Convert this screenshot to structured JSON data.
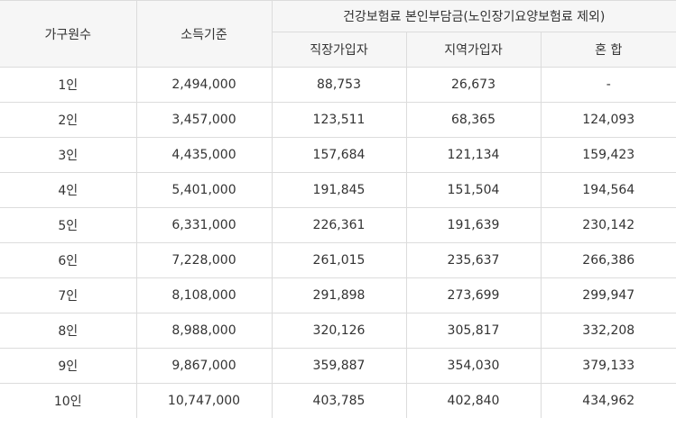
{
  "header": {
    "household": "가구원수",
    "income": "소득기준",
    "premium_group": "건강보험료 본인부담금(노인장기요양보험료 제외)",
    "employee": "직장가입자",
    "regional": "지역가입자",
    "mixed": "혼 합"
  },
  "rows": [
    [
      "1인",
      "2,494,000",
      "88,753",
      "26,673",
      "-"
    ],
    [
      "2인",
      "3,457,000",
      "123,511",
      "68,365",
      "124,093"
    ],
    [
      "3인",
      "4,435,000",
      "157,684",
      "121,134",
      "159,423"
    ],
    [
      "4인",
      "5,401,000",
      "191,845",
      "151,504",
      "194,564"
    ],
    [
      "5인",
      "6,331,000",
      "226,361",
      "191,639",
      "230,142"
    ],
    [
      "6인",
      "7,228,000",
      "261,015",
      "235,637",
      "266,386"
    ],
    [
      "7인",
      "8,108,000",
      "291,898",
      "273,699",
      "299,947"
    ],
    [
      "8인",
      "8,988,000",
      "320,126",
      "305,817",
      "332,208"
    ],
    [
      "9인",
      "9,867,000",
      "359,887",
      "354,030",
      "379,133"
    ],
    [
      "10인",
      "10,747,000",
      "403,785",
      "402,840",
      "434,962"
    ]
  ]
}
